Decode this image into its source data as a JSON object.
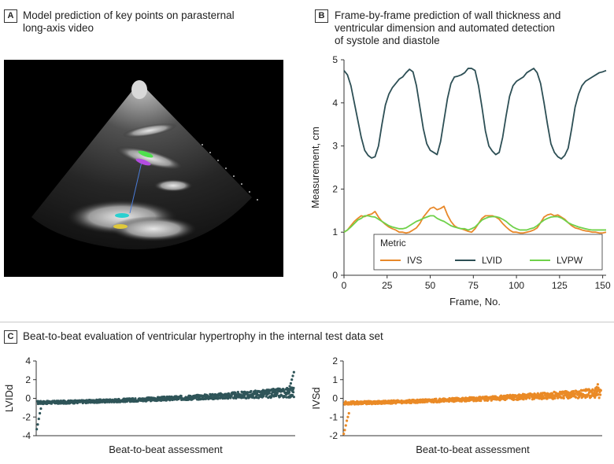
{
  "panels": {
    "a": {
      "letter": "A",
      "title_line1": "Model prediction of key points on parasternal",
      "title_line2": "long-axis video"
    },
    "b": {
      "letter": "B",
      "title_line1": "Frame-by-frame prediction of wall thickness and",
      "title_line2": "ventricular dimension and automated detection",
      "title_line3": "of systole and diastole"
    },
    "c": {
      "letter": "C",
      "title": "Beat-to-beat evaluation of ventricular hypertrophy in the internal test data set"
    }
  },
  "colors": {
    "ivs": "#e8882a",
    "lvid": "#2d4f55",
    "lvpw": "#6fd14a",
    "beat_lvidd": "#2f5559",
    "beat_ivsd": "#ea8a26"
  },
  "chart_data": [
    {
      "type": "line",
      "xlabel": "Frame, No.",
      "ylabel": "Measurement, cm",
      "xlim": [
        0,
        152
      ],
      "ylim": [
        0,
        5
      ],
      "xticks": [
        0,
        25,
        50,
        75,
        100,
        125,
        150
      ],
      "yticks": [
        0,
        1,
        2,
        3,
        4,
        5
      ],
      "legend": {
        "title": "Metric",
        "placement": "bottom-right"
      },
      "x": [
        0,
        2,
        4,
        6,
        8,
        10,
        12,
        14,
        16,
        18,
        20,
        22,
        24,
        26,
        28,
        30,
        32,
        34,
        36,
        38,
        40,
        42,
        44,
        46,
        48,
        50,
        52,
        54,
        56,
        58,
        60,
        62,
        64,
        66,
        68,
        70,
        72,
        74,
        76,
        78,
        80,
        82,
        84,
        86,
        88,
        90,
        92,
        94,
        96,
        98,
        100,
        102,
        104,
        106,
        108,
        110,
        112,
        114,
        116,
        118,
        120,
        122,
        124,
        126,
        128,
        130,
        132,
        134,
        136,
        138,
        140,
        142,
        144,
        146,
        148,
        150,
        152
      ],
      "series": [
        {
          "name": "IVS",
          "values": [
            1.0,
            1.05,
            1.15,
            1.25,
            1.32,
            1.38,
            1.36,
            1.4,
            1.42,
            1.48,
            1.35,
            1.25,
            1.18,
            1.12,
            1.08,
            1.05,
            1.0,
            1.0,
            0.98,
            1.0,
            1.05,
            1.1,
            1.2,
            1.35,
            1.45,
            1.55,
            1.58,
            1.52,
            1.55,
            1.6,
            1.4,
            1.25,
            1.15,
            1.1,
            1.08,
            1.05,
            1.02,
            1.0,
            1.08,
            1.2,
            1.32,
            1.38,
            1.38,
            1.38,
            1.35,
            1.3,
            1.2,
            1.12,
            1.05,
            1.0,
            1.0,
            0.98,
            0.98,
            1.0,
            1.02,
            1.05,
            1.1,
            1.22,
            1.35,
            1.4,
            1.42,
            1.38,
            1.4,
            1.35,
            1.3,
            1.22,
            1.15,
            1.1,
            1.08,
            1.05,
            1.03,
            1.02,
            1.0,
            1.0,
            0.98,
            0.98,
            1.0
          ]
        },
        {
          "name": "LVID",
          "values": [
            4.75,
            4.65,
            4.4,
            4.0,
            3.6,
            3.2,
            2.9,
            2.78,
            2.72,
            2.75,
            3.0,
            3.5,
            3.95,
            4.2,
            4.35,
            4.45,
            4.55,
            4.6,
            4.7,
            4.78,
            4.72,
            4.4,
            3.9,
            3.4,
            3.05,
            2.9,
            2.85,
            2.8,
            3.1,
            3.6,
            4.1,
            4.45,
            4.6,
            4.62,
            4.65,
            4.7,
            4.8,
            4.8,
            4.75,
            4.4,
            3.9,
            3.35,
            3.0,
            2.88,
            2.8,
            2.85,
            3.2,
            3.7,
            4.15,
            4.4,
            4.5,
            4.55,
            4.6,
            4.7,
            4.75,
            4.8,
            4.7,
            4.45,
            4.0,
            3.5,
            3.05,
            2.85,
            2.75,
            2.7,
            2.78,
            2.95,
            3.4,
            3.9,
            4.2,
            4.4,
            4.5,
            4.55,
            4.6,
            4.65,
            4.7,
            4.72,
            4.75
          ]
        },
        {
          "name": "LVPW",
          "values": [
            1.0,
            1.05,
            1.12,
            1.2,
            1.28,
            1.32,
            1.38,
            1.38,
            1.36,
            1.35,
            1.3,
            1.25,
            1.2,
            1.15,
            1.12,
            1.1,
            1.08,
            1.08,
            1.1,
            1.15,
            1.2,
            1.25,
            1.28,
            1.32,
            1.35,
            1.38,
            1.38,
            1.32,
            1.28,
            1.25,
            1.2,
            1.15,
            1.12,
            1.1,
            1.08,
            1.08,
            1.05,
            1.08,
            1.12,
            1.2,
            1.28,
            1.32,
            1.35,
            1.36,
            1.36,
            1.34,
            1.3,
            1.25,
            1.18,
            1.12,
            1.08,
            1.05,
            1.05,
            1.05,
            1.08,
            1.1,
            1.15,
            1.22,
            1.28,
            1.32,
            1.35,
            1.36,
            1.36,
            1.33,
            1.28,
            1.22,
            1.18,
            1.15,
            1.12,
            1.1,
            1.08,
            1.06,
            1.05,
            1.05,
            1.05,
            1.05,
            1.05
          ]
        }
      ]
    },
    {
      "type": "scatter",
      "xlabel": "Beat-to-beat assessment",
      "ylabel": "LVIDd",
      "ylim": [
        -4,
        4
      ],
      "yticks": [
        -4,
        -2,
        0,
        2,
        4
      ],
      "n_points": 900,
      "trend": {
        "start": -0.45,
        "end": 0.65
      },
      "low_outliers": [
        -3.3,
        -2.8,
        -2.2,
        -1.6,
        -1.1
      ],
      "high_outliers": [
        1.0,
        1.3,
        1.6,
        2.0,
        2.4,
        2.8
      ]
    },
    {
      "type": "scatter",
      "xlabel": "Beat-to-beat assessment",
      "ylabel": "IVSd",
      "ylim": [
        -2,
        2
      ],
      "yticks": [
        -2,
        -1,
        0,
        1,
        2
      ],
      "n_points": 900,
      "trend": {
        "start": -0.25,
        "end": 0.3
      },
      "low_outliers": [
        -1.9,
        -1.7,
        -1.45,
        -1.2,
        -1.0,
        -0.8
      ],
      "high_outliers": [
        0.5,
        0.6,
        0.75
      ]
    }
  ]
}
